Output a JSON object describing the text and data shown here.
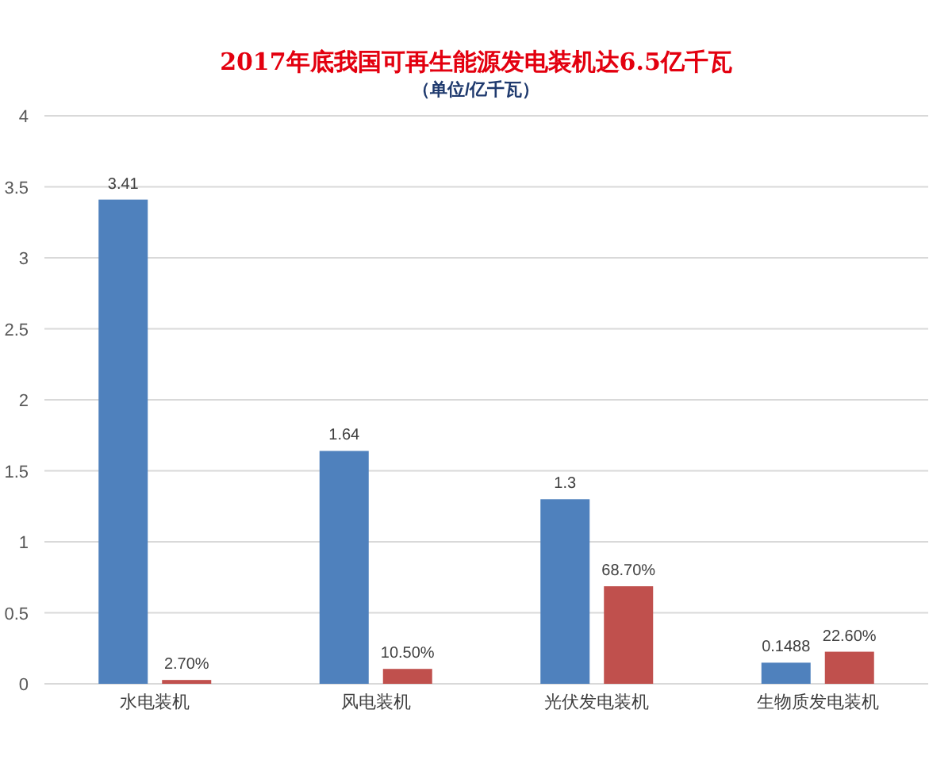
{
  "chart_data": {
    "type": "bar",
    "title": "2017年底我国可再生能源发电装机达6.5亿千瓦",
    "subtitle": "（单位/亿千瓦）",
    "categories": [
      "水电装机",
      "风电装机",
      "光伏发电装机",
      "生物质发电装机"
    ],
    "series": [
      {
        "color": "#4f81bd",
        "values": [
          3.41,
          1.64,
          1.3,
          0.1488
        ],
        "value_labels": [
          "3.41",
          "1.64",
          "1.3",
          "0.1488"
        ]
      },
      {
        "color": "#c0504d",
        "values": [
          0.027,
          0.105,
          0.687,
          0.226
        ],
        "value_labels": [
          "2.70%",
          "10.50%",
          "68.70%",
          "22.60%"
        ]
      }
    ],
    "ylim": [
      0,
      4
    ],
    "yticks": [
      0,
      0.5,
      1,
      1.5,
      2,
      2.5,
      3,
      3.5,
      4
    ],
    "grid": "y"
  }
}
